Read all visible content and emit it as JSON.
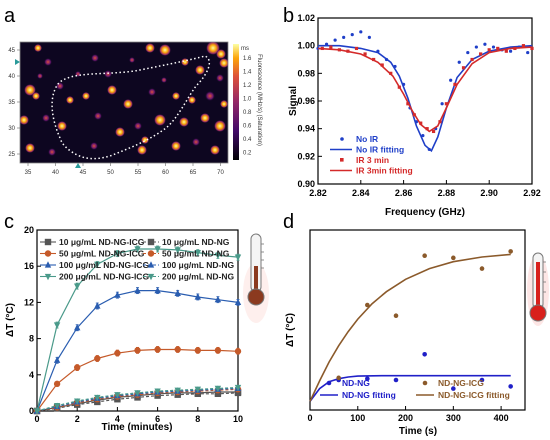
{
  "panels": {
    "a": "a",
    "b": "b",
    "c": "c",
    "d": "d"
  },
  "colors": {
    "blue": "#1f3fc8",
    "red": "#d42a2a",
    "gray": "#555555",
    "orange": "#c55a2a",
    "navy": "#2a5db0",
    "teal": "#4a9a8a",
    "brown": "#8b5a2b",
    "dkblue": "#2020c8"
  },
  "chart_data": [
    {
      "id": "a",
      "type": "heatmap",
      "xticks": [
        "35",
        "40",
        "45",
        "50",
        "55",
        "60",
        "65",
        "70"
      ],
      "yticks": [
        "45",
        "40",
        "35",
        "30",
        "25"
      ],
      "colorbar_ticks": [
        "1.6",
        "1.4",
        "1.2",
        "1.0",
        "0.8",
        "0.6",
        "0.4",
        "0.2"
      ],
      "colorbar_top": "ms",
      "colorbar_label": "Fluorescence (MHz/s) (Saturation)",
      "colormap": "inferno",
      "outline": "dotted white contour"
    },
    {
      "id": "b",
      "type": "line",
      "xlabel": "Frequency (GHz)",
      "ylabel": "Signal",
      "xlim": [
        2.82,
        2.92
      ],
      "ylim": [
        0.9,
        1.02
      ],
      "xticks": [
        "2.82",
        "2.84",
        "2.86",
        "2.88",
        "2.90",
        "2.92"
      ],
      "yticks": [
        "0.90",
        "0.92",
        "0.94",
        "0.96",
        "0.98",
        "1.00",
        "1.02"
      ],
      "legend": [
        "No IR",
        "No IR fitting",
        "IR 3 min",
        "IR 3min fitting"
      ],
      "legend_position": "bottom-left",
      "series": [
        {
          "name": "No IR",
          "kind": "points",
          "x": [
            2.82,
            2.824,
            2.828,
            2.832,
            2.836,
            2.84,
            2.844,
            2.848,
            2.852,
            2.856,
            2.86,
            2.863,
            2.866,
            2.869,
            2.872,
            2.875,
            2.878,
            2.882,
            2.886,
            2.89,
            2.894,
            2.898,
            2.902,
            2.906,
            2.91,
            2.914,
            2.918
          ],
          "y": [
            0.998,
            1.001,
            1.004,
            1.006,
            1.008,
            1.01,
            1.006,
            0.996,
            0.99,
            0.985,
            0.972,
            0.955,
            0.945,
            0.935,
            0.925,
            0.94,
            0.958,
            0.975,
            0.988,
            0.995,
            0.999,
            1.001,
            0.999,
            0.997,
            0.996,
            0.999,
            0.995
          ]
        },
        {
          "name": "No IR fitting",
          "kind": "line",
          "x": [
            2.82,
            2.83,
            2.84,
            2.848,
            2.854,
            2.858,
            2.862,
            2.866,
            2.87,
            2.873,
            2.876,
            2.88,
            2.885,
            2.892,
            2.9,
            2.91,
            2.92
          ],
          "y": [
            1.0,
            1.0,
            0.998,
            0.995,
            0.988,
            0.978,
            0.962,
            0.942,
            0.928,
            0.924,
            0.934,
            0.955,
            0.977,
            0.99,
            0.996,
            0.999,
            1.0
          ]
        },
        {
          "name": "IR 3 min",
          "kind": "points",
          "x": [
            2.822,
            2.826,
            2.83,
            2.834,
            2.838,
            2.842,
            2.846,
            2.85,
            2.854,
            2.858,
            2.862,
            2.865,
            2.868,
            2.871,
            2.874,
            2.877,
            2.88,
            2.884,
            2.888,
            2.892,
            2.896,
            2.9,
            2.904,
            2.908,
            2.912,
            2.916,
            2.92
          ],
          "y": [
            0.998,
            0.999,
            0.997,
            0.996,
            0.998,
            0.994,
            0.99,
            0.986,
            0.98,
            0.97,
            0.958,
            0.95,
            0.944,
            0.94,
            0.938,
            0.945,
            0.958,
            0.972,
            0.984,
            0.99,
            0.994,
            0.997,
            0.998,
            0.996,
            0.998,
            1.0,
            0.998
          ]
        },
        {
          "name": "IR 3min fitting",
          "kind": "line",
          "x": [
            2.82,
            2.83,
            2.84,
            2.848,
            2.855,
            2.86,
            2.864,
            2.868,
            2.872,
            2.876,
            2.88,
            2.885,
            2.892,
            2.9,
            2.91,
            2.92
          ],
          "y": [
            0.998,
            0.997,
            0.994,
            0.988,
            0.978,
            0.965,
            0.953,
            0.943,
            0.938,
            0.942,
            0.955,
            0.972,
            0.987,
            0.995,
            0.998,
            0.999
          ]
        }
      ]
    },
    {
      "id": "c",
      "type": "line",
      "xlabel": "Time (minutes)",
      "ylabel": "ΔT (°C)",
      "xlim": [
        0,
        10
      ],
      "ylim": [
        0,
        20
      ],
      "xticks": [
        "0",
        "2",
        "4",
        "6",
        "8",
        "10"
      ],
      "yticks": [
        "0",
        "4",
        "8",
        "12",
        "16",
        "20"
      ],
      "legend_position": "top",
      "x": [
        0,
        1,
        2,
        3,
        4,
        5,
        6,
        7,
        8,
        9,
        10
      ],
      "series": [
        {
          "name": "10 μg/mL ND-NG-ICG",
          "marker": "square",
          "color": "gray",
          "values": [
            0,
            0.4,
            0.8,
            1.2,
            1.5,
            1.7,
            1.9,
            2.0,
            2.0,
            2.1,
            2.1
          ]
        },
        {
          "name": "10 μg/mL ND-NG",
          "marker": "square",
          "color": "gray",
          "values": [
            0,
            0.3,
            0.7,
            1.0,
            1.3,
            1.5,
            1.7,
            1.8,
            1.9,
            1.9,
            2.0
          ]
        },
        {
          "name": "50 μg/mL ND-NG-ICG",
          "marker": "circle",
          "color": "orange",
          "values": [
            0,
            3.0,
            4.8,
            5.8,
            6.4,
            6.7,
            6.8,
            6.8,
            6.7,
            6.7,
            6.6
          ]
        },
        {
          "name": "50 μg/mL ND-NG",
          "marker": "circle",
          "color": "orange",
          "values": [
            0,
            0.4,
            0.9,
            1.3,
            1.6,
            1.8,
            2.0,
            2.1,
            2.2,
            2.3,
            2.4
          ]
        },
        {
          "name": "100 μg/mL ND-NG-ICG",
          "marker": "triangle-up",
          "color": "navy",
          "values": [
            0,
            5.6,
            9.2,
            11.6,
            12.8,
            13.3,
            13.3,
            13.0,
            12.6,
            12.3,
            12.0
          ]
        },
        {
          "name": "100 μg/mL ND-NG",
          "marker": "triangle-up",
          "color": "navy",
          "values": [
            0,
            0.5,
            1.0,
            1.4,
            1.7,
            1.9,
            2.1,
            2.2,
            2.3,
            2.4,
            2.5
          ]
        },
        {
          "name": "200 μg/mL ND-NG-ICG",
          "marker": "triangle-down",
          "color": "teal",
          "values": [
            0,
            9.5,
            13.8,
            16.2,
            17.4,
            17.9,
            17.9,
            17.8,
            17.5,
            17.2,
            17.0
          ]
        },
        {
          "name": "200 μg/mL ND-NG",
          "marker": "triangle-down",
          "color": "teal",
          "values": [
            0,
            0.6,
            1.1,
            1.5,
            1.8,
            2.0,
            2.2,
            2.3,
            2.4,
            2.5,
            2.6
          ]
        }
      ]
    },
    {
      "id": "d",
      "type": "scatter",
      "xlabel": "Time (s)",
      "ylabel": "ΔT (°C)",
      "xlim": [
        0,
        450
      ],
      "ylim": [
        -2,
        40
      ],
      "xticks": [
        "0",
        "100",
        "200",
        "300",
        "400"
      ],
      "legend": [
        "ND-NG",
        "ND-NG fitting",
        "ND-NG-ICG",
        "ND-NG-ICG fitting"
      ],
      "legend_position": "bottom",
      "series": [
        {
          "name": "ND-NG",
          "kind": "points",
          "color": "dkblue",
          "x": [
            60,
            120,
            180,
            240,
            300,
            360,
            420
          ],
          "y": [
            5.0,
            5.3,
            5.0,
            11.0,
            3.0,
            5.0,
            3.5
          ]
        },
        {
          "name": "ND-NG fitting",
          "kind": "line",
          "color": "dkblue",
          "x": [
            0,
            20,
            40,
            60,
            80,
            100,
            150,
            200,
            300,
            420
          ],
          "y": [
            0,
            3.0,
            4.6,
            5.3,
            5.7,
            5.9,
            6.0,
            6.0,
            6.0,
            6.0
          ]
        },
        {
          "name": "ND-NG-ICG",
          "kind": "points",
          "color": "brown",
          "x": [
            60,
            120,
            180,
            240,
            300,
            360,
            420
          ],
          "y": [
            5.5,
            22.5,
            20.0,
            34.0,
            33.5,
            31.0,
            35.0
          ]
        },
        {
          "name": "ND-NG-ICG fitting",
          "kind": "line",
          "color": "brown",
          "x": [
            0,
            20,
            40,
            60,
            80,
            100,
            130,
            160,
            200,
            250,
            300,
            360,
            420
          ],
          "y": [
            0,
            4.8,
            9.2,
            13.0,
            16.3,
            19.2,
            22.8,
            25.6,
            28.5,
            31.0,
            32.6,
            33.7,
            34.3
          ]
        }
      ]
    }
  ]
}
